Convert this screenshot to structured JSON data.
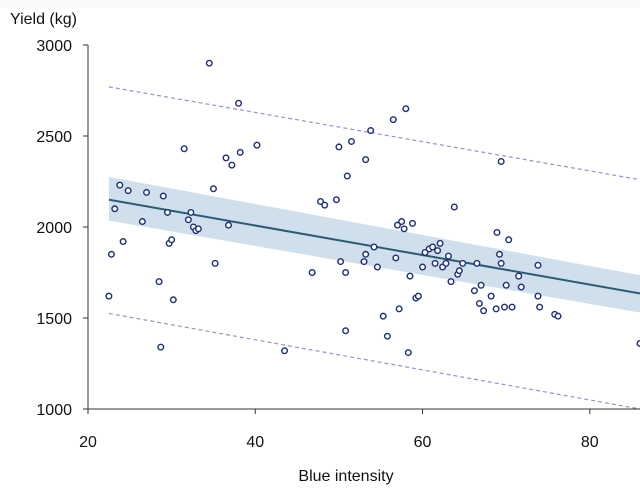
{
  "chart_data": {
    "type": "scatter",
    "xlabel": "Blue intensity",
    "ylabel": "Yield (kg)",
    "xlim": [
      20,
      86
    ],
    "ylim": [
      1000,
      3000
    ],
    "x_ticks": [
      "20",
      "40",
      "60",
      "80"
    ],
    "y_ticks": [
      "3000",
      "2500",
      "2000",
      "1500",
      "1000"
    ],
    "grid": false,
    "legend": "none",
    "colors": {
      "points": "#1f2f7a",
      "fit_line": "#2d5a73",
      "confidence_band": "#bfd4e6",
      "prediction_bounds": "#a08ccf"
    },
    "fit_line": {
      "x": [
        22.5,
        86
      ],
      "y": [
        2150,
        1635
      ]
    },
    "confidence_band": {
      "x": [
        22.5,
        86
      ],
      "upper": [
        2275,
        1735
      ],
      "lower": [
        2035,
        1530
      ]
    },
    "prediction_bounds": {
      "x": [
        22.5,
        86
      ],
      "upper": [
        2770,
        2260
      ],
      "lower": [
        1525,
        1000
      ]
    },
    "points": [
      [
        22.5,
        1620
      ],
      [
        22.8,
        1850
      ],
      [
        23.2,
        2100
      ],
      [
        23.8,
        2230
      ],
      [
        24.2,
        1920
      ],
      [
        24.8,
        2200
      ],
      [
        26.5,
        2030
      ],
      [
        27.0,
        2190
      ],
      [
        28.5,
        1700
      ],
      [
        28.7,
        1340
      ],
      [
        29.0,
        2170
      ],
      [
        29.5,
        2080
      ],
      [
        29.7,
        1910
      ],
      [
        30.0,
        1930
      ],
      [
        30.2,
        1600
      ],
      [
        31.5,
        2430
      ],
      [
        32.0,
        2040
      ],
      [
        32.3,
        2080
      ],
      [
        32.6,
        2000
      ],
      [
        32.9,
        1980
      ],
      [
        33.2,
        1990
      ],
      [
        34.5,
        2900
      ],
      [
        35.0,
        2210
      ],
      [
        35.2,
        1800
      ],
      [
        36.5,
        2380
      ],
      [
        36.8,
        2010
      ],
      [
        37.2,
        2340
      ],
      [
        38.0,
        2680
      ],
      [
        38.2,
        2410
      ],
      [
        40.2,
        2450
      ],
      [
        43.5,
        1320
      ],
      [
        46.8,
        1750
      ],
      [
        47.8,
        2140
      ],
      [
        48.3,
        2120
      ],
      [
        49.7,
        2150
      ],
      [
        50.0,
        2440
      ],
      [
        50.2,
        1810
      ],
      [
        50.8,
        1430
      ],
      [
        50.8,
        1750
      ],
      [
        51.0,
        2280
      ],
      [
        51.5,
        2470
      ],
      [
        53.0,
        1810
      ],
      [
        53.2,
        1850
      ],
      [
        53.2,
        2370
      ],
      [
        53.8,
        2530
      ],
      [
        54.2,
        1890
      ],
      [
        54.6,
        1780
      ],
      [
        55.3,
        1510
      ],
      [
        55.8,
        1400
      ],
      [
        56.5,
        2590
      ],
      [
        56.8,
        1830
      ],
      [
        57.0,
        2010
      ],
      [
        57.2,
        1550
      ],
      [
        57.5,
        2030
      ],
      [
        57.8,
        1990
      ],
      [
        58.0,
        2650
      ],
      [
        58.3,
        1310
      ],
      [
        58.5,
        1730
      ],
      [
        58.8,
        2020
      ],
      [
        59.2,
        1610
      ],
      [
        59.5,
        1620
      ],
      [
        60.0,
        1780
      ],
      [
        60.3,
        1860
      ],
      [
        60.8,
        1880
      ],
      [
        61.2,
        1890
      ],
      [
        61.5,
        1800
      ],
      [
        61.8,
        1870
      ],
      [
        62.1,
        1910
      ],
      [
        62.4,
        1780
      ],
      [
        62.8,
        1800
      ],
      [
        63.1,
        1840
      ],
      [
        63.4,
        1700
      ],
      [
        63.8,
        2110
      ],
      [
        64.2,
        1740
      ],
      [
        64.4,
        1760
      ],
      [
        64.8,
        1800
      ],
      [
        66.2,
        1650
      ],
      [
        66.5,
        1800
      ],
      [
        66.8,
        1580
      ],
      [
        67.0,
        1680
      ],
      [
        67.3,
        1540
      ],
      [
        68.2,
        1620
      ],
      [
        68.8,
        1550
      ],
      [
        68.9,
        1970
      ],
      [
        69.2,
        1850
      ],
      [
        69.4,
        1800
      ],
      [
        69.4,
        2360
      ],
      [
        69.8,
        1560
      ],
      [
        70.0,
        1680
      ],
      [
        70.3,
        1930
      ],
      [
        70.7,
        1560
      ],
      [
        71.5,
        1730
      ],
      [
        71.8,
        1670
      ],
      [
        73.8,
        1790
      ],
      [
        73.8,
        1620
      ],
      [
        74.0,
        1560
      ],
      [
        75.8,
        1520
      ],
      [
        76.2,
        1510
      ],
      [
        86.0,
        1360
      ]
    ]
  }
}
